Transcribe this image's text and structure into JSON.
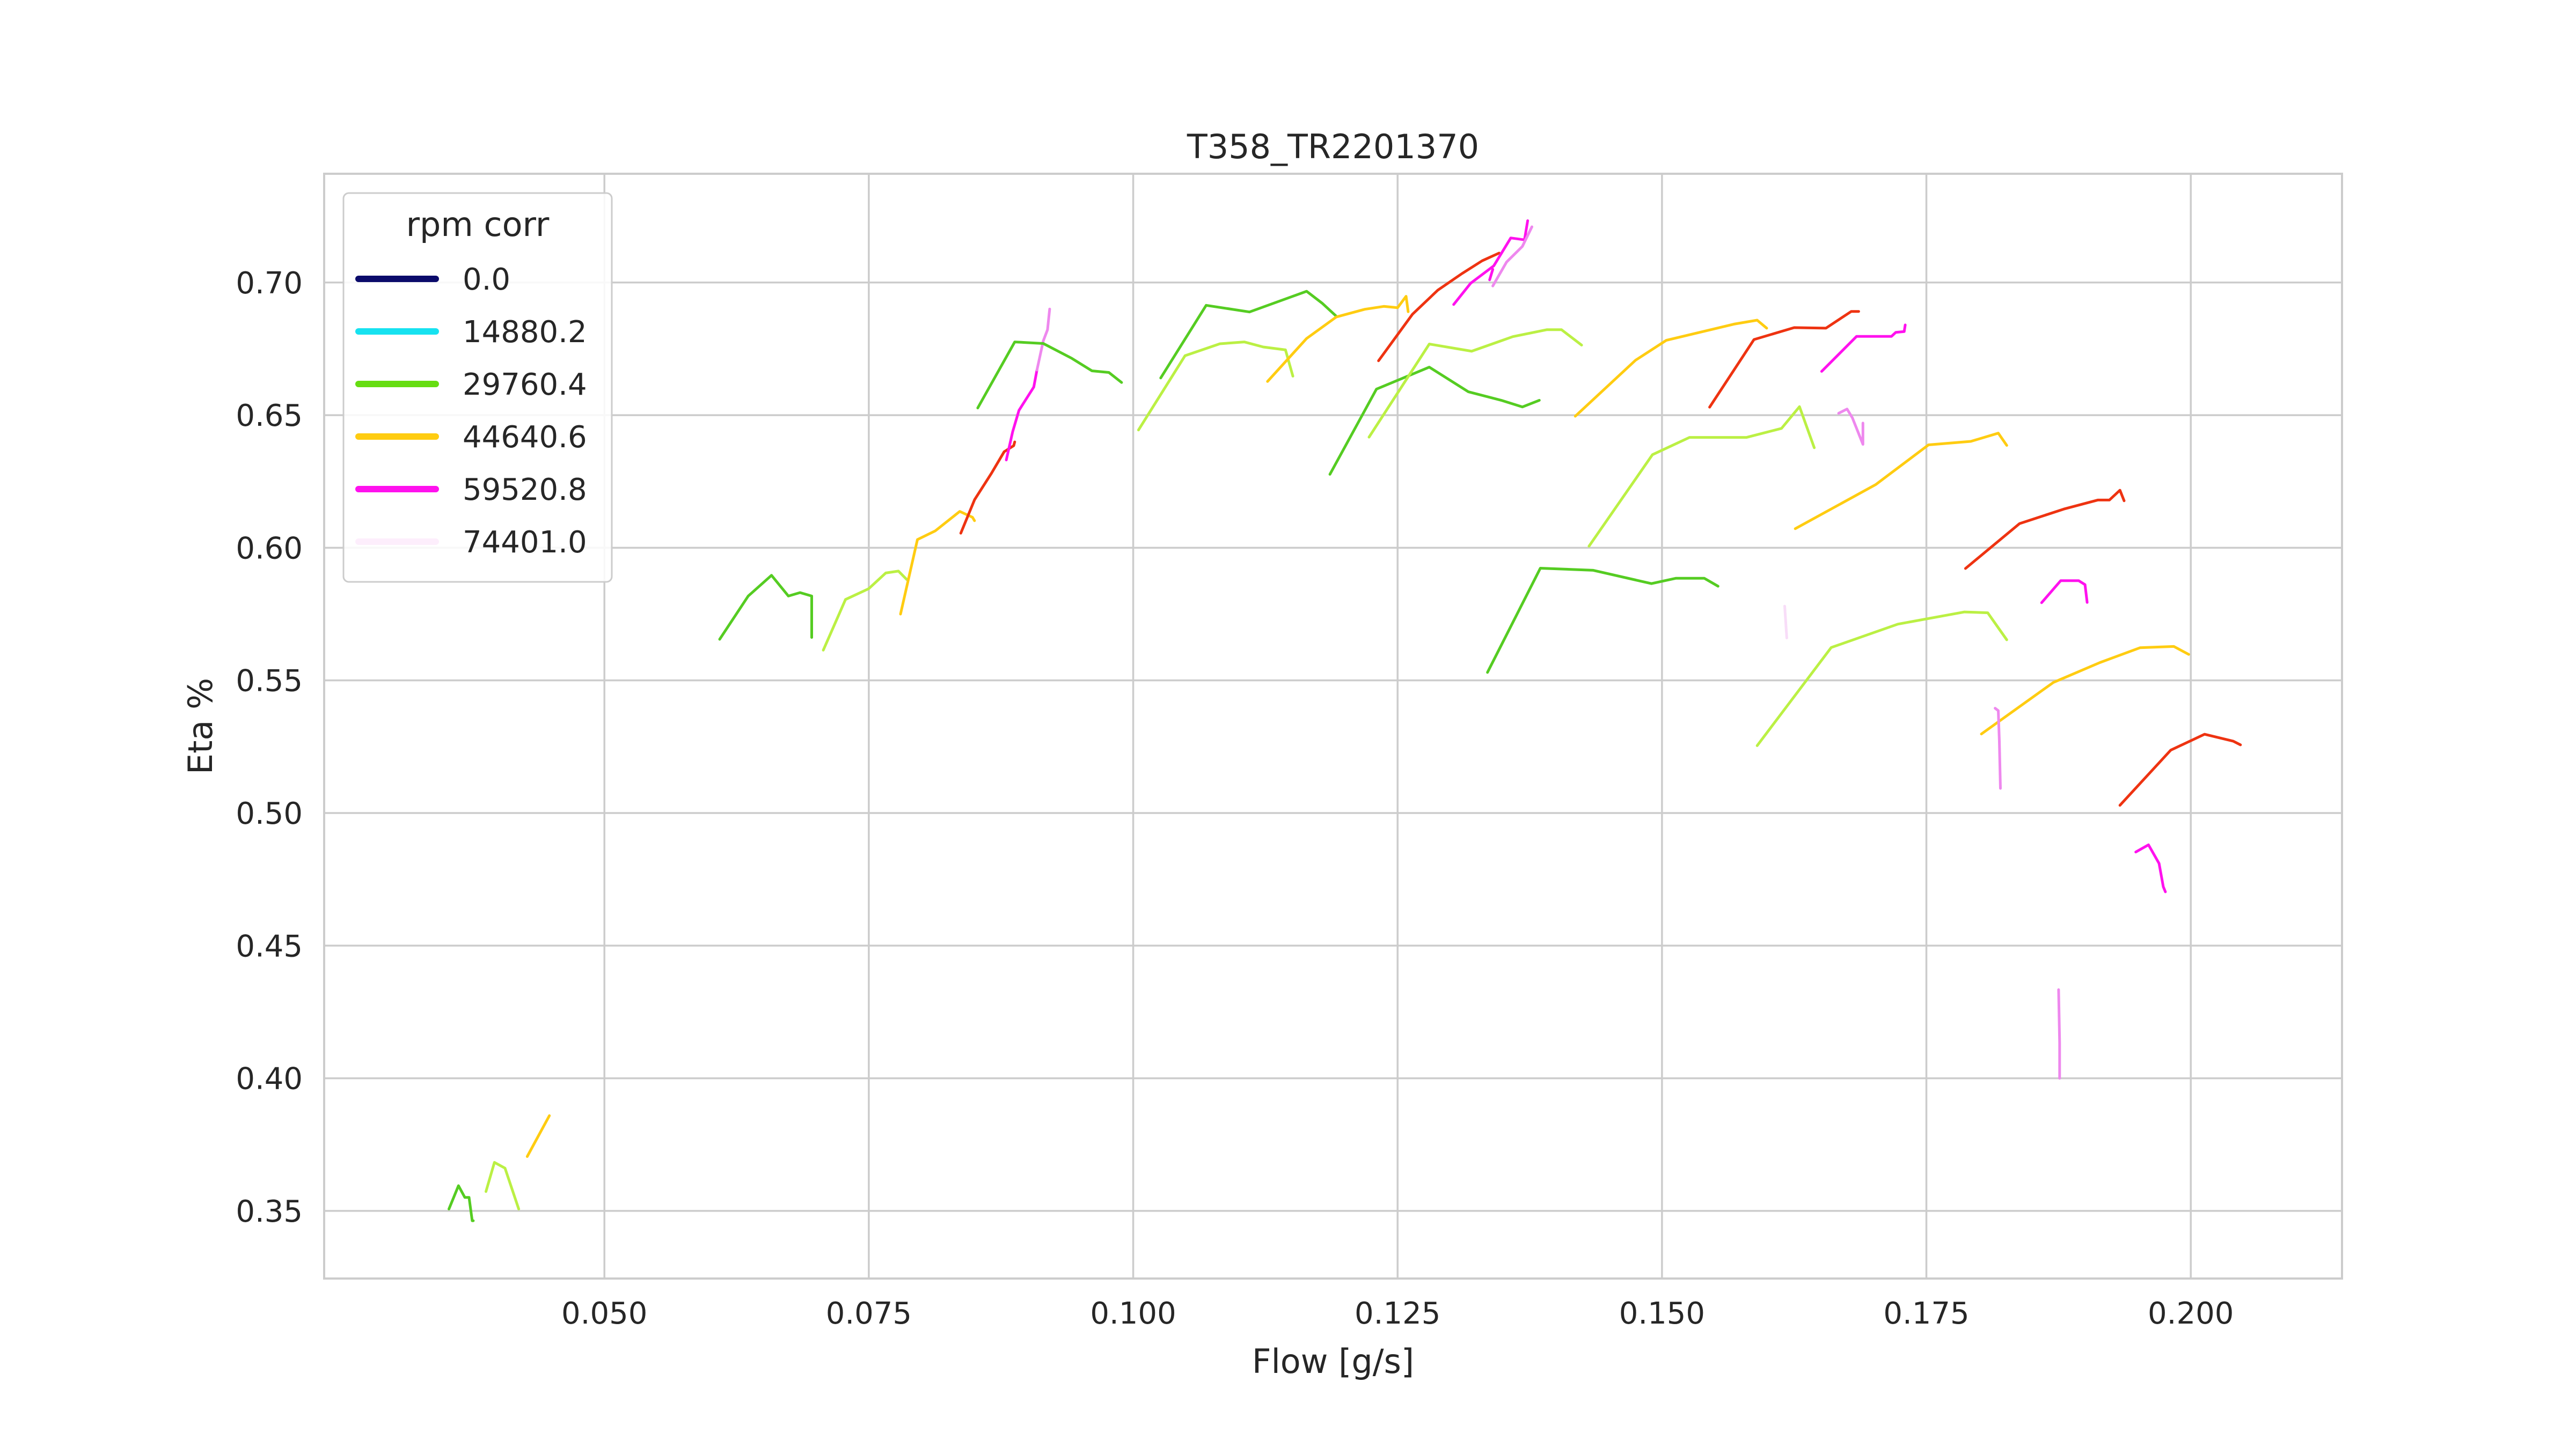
{
  "chart_data": {
    "type": "line",
    "title": "T358_TR2201370",
    "xlabel": "Flow [g/s]",
    "ylabel": "Eta %",
    "xlim": [
      0.0235,
      0.2143
    ],
    "ylim": [
      0.3245,
      0.741
    ],
    "xticks": [
      "0.050",
      "0.075",
      "0.100",
      "0.125",
      "0.150",
      "0.175",
      "0.200"
    ],
    "xtick_values": [
      0.05,
      0.075,
      0.1,
      0.125,
      0.15,
      0.175,
      0.2
    ],
    "yticks": [
      "0.35",
      "0.40",
      "0.45",
      "0.50",
      "0.55",
      "0.60",
      "0.65",
      "0.70"
    ],
    "ytick_values": [
      0.35,
      0.4,
      0.45,
      0.5,
      0.55,
      0.6,
      0.65,
      0.7
    ],
    "grid": true,
    "legend": {
      "title": "rpm corr",
      "position": "top-left",
      "entries": [
        {
          "label": "0.0",
          "color": "#0b0b6b"
        },
        {
          "label": "14880.2",
          "color": "#17e2f0"
        },
        {
          "label": "29760.4",
          "color": "#66dd11"
        },
        {
          "label": "44640.6",
          "color": "#ffcc11"
        },
        {
          "label": "59520.8",
          "color": "#ff11ee"
        },
        {
          "label": "74401.0",
          "color": "#fdeefc"
        }
      ]
    },
    "series": [
      {
        "color": "#55cc22",
        "points": [
          [
            0.0353,
            0.3507
          ],
          [
            0.0362,
            0.3595
          ],
          [
            0.0368,
            0.3551
          ],
          [
            0.0372,
            0.3551
          ],
          [
            0.0375,
            0.3463
          ],
          [
            0.0376,
            0.3463
          ]
        ]
      },
      {
        "color": "#bbf044",
        "points": [
          [
            0.0388,
            0.3573
          ],
          [
            0.0396,
            0.3683
          ],
          [
            0.0406,
            0.3661
          ],
          [
            0.0419,
            0.3507
          ]
        ]
      },
      {
        "color": "#ffcc11",
        "points": [
          [
            0.0427,
            0.3705
          ],
          [
            0.0448,
            0.3859
          ]
        ]
      },
      {
        "color": "#55cc22",
        "points": [
          [
            0.0609,
            0.5655
          ],
          [
            0.0636,
            0.5818
          ],
          [
            0.0658,
            0.5896
          ],
          [
            0.0674,
            0.5818
          ],
          [
            0.0685,
            0.5831
          ],
          [
            0.0696,
            0.5818
          ],
          [
            0.0696,
            0.5662
          ]
        ]
      },
      {
        "color": "#bbf044",
        "points": [
          [
            0.0707,
            0.5614
          ],
          [
            0.0728,
            0.5805
          ],
          [
            0.075,
            0.5846
          ],
          [
            0.0766,
            0.5905
          ],
          [
            0.0778,
            0.5912
          ],
          [
            0.0786,
            0.588
          ]
        ]
      },
      {
        "color": "#ffcc11",
        "points": [
          [
            0.078,
            0.575
          ],
          [
            0.0796,
            0.6031
          ],
          [
            0.0813,
            0.6064
          ],
          [
            0.0836,
            0.6137
          ],
          [
            0.0848,
            0.6115
          ],
          [
            0.085,
            0.6102
          ]
        ]
      },
      {
        "color": "#ee3311",
        "points": [
          [
            0.0837,
            0.6055
          ],
          [
            0.085,
            0.6181
          ],
          [
            0.0866,
            0.6281
          ],
          [
            0.0878,
            0.6362
          ],
          [
            0.0887,
            0.6385
          ],
          [
            0.0888,
            0.6399
          ]
        ]
      },
      {
        "color": "#ff11ee",
        "points": [
          [
            0.088,
            0.6331
          ],
          [
            0.0886,
            0.6437
          ],
          [
            0.0892,
            0.6518
          ],
          [
            0.0906,
            0.6606
          ],
          [
            0.0909,
            0.667
          ]
        ]
      },
      {
        "color": "#ee88ee",
        "points": [
          [
            0.0909,
            0.667
          ],
          [
            0.0915,
            0.678
          ],
          [
            0.0919,
            0.6822
          ],
          [
            0.0921,
            0.69
          ]
        ]
      },
      {
        "color": "#55cc22",
        "points": [
          [
            0.0853,
            0.6527
          ],
          [
            0.0888,
            0.6776
          ],
          [
            0.0915,
            0.677
          ],
          [
            0.0942,
            0.6714
          ],
          [
            0.0961,
            0.6667
          ],
          [
            0.0977,
            0.6661
          ],
          [
            0.0989,
            0.6623
          ]
        ]
      },
      {
        "color": "#55cc22",
        "points": [
          [
            0.1026,
            0.664
          ],
          [
            0.1069,
            0.6914
          ],
          [
            0.111,
            0.6889
          ],
          [
            0.1164,
            0.6967
          ],
          [
            0.1179,
            0.6921
          ],
          [
            0.1192,
            0.6873
          ]
        ]
      },
      {
        "color": "#bbf044",
        "points": [
          [
            0.1005,
            0.6444
          ],
          [
            0.1049,
            0.6724
          ],
          [
            0.1082,
            0.6769
          ],
          [
            0.1105,
            0.6776
          ],
          [
            0.1123,
            0.6757
          ],
          [
            0.1144,
            0.6746
          ],
          [
            0.1151,
            0.6647
          ]
        ]
      },
      {
        "color": "#ffcc11",
        "points": [
          [
            0.1127,
            0.6627
          ],
          [
            0.1164,
            0.6789
          ],
          [
            0.1192,
            0.687
          ],
          [
            0.1219,
            0.6899
          ],
          [
            0.1237,
            0.691
          ],
          [
            0.125,
            0.6905
          ],
          [
            0.1258,
            0.6948
          ],
          [
            0.126,
            0.689
          ]
        ]
      },
      {
        "color": "#ee3311",
        "points": [
          [
            0.1232,
            0.6705
          ],
          [
            0.1264,
            0.688
          ],
          [
            0.1288,
            0.6971
          ],
          [
            0.1311,
            0.7034
          ],
          [
            0.133,
            0.7082
          ],
          [
            0.1346,
            0.7111
          ]
        ]
      },
      {
        "color": "#ff11ee",
        "points": [
          [
            0.1303,
            0.6917
          ],
          [
            0.1319,
            0.6997
          ],
          [
            0.1341,
            0.7063
          ],
          [
            0.1357,
            0.7168
          ],
          [
            0.137,
            0.7161
          ],
          [
            0.1373,
            0.7233
          ]
        ]
      },
      {
        "color": "#ee88ee",
        "points": [
          [
            0.134,
            0.6987
          ],
          [
            0.1353,
            0.7077
          ],
          [
            0.1368,
            0.7136
          ],
          [
            0.1377,
            0.721
          ]
        ]
      },
      {
        "color": "#ff11ee",
        "points": [
          [
            0.1337,
            0.701
          ],
          [
            0.134,
            0.705
          ]
        ]
      },
      {
        "color": "#55cc22",
        "points": [
          [
            0.1186,
            0.6277
          ],
          [
            0.123,
            0.6598
          ],
          [
            0.128,
            0.6681
          ],
          [
            0.1317,
            0.6588
          ],
          [
            0.1348,
            0.6556
          ],
          [
            0.1368,
            0.6531
          ],
          [
            0.1384,
            0.6556
          ]
        ]
      },
      {
        "color": "#bbf044",
        "points": [
          [
            0.1223,
            0.6417
          ],
          [
            0.128,
            0.6768
          ],
          [
            0.132,
            0.6741
          ],
          [
            0.1359,
            0.6796
          ],
          [
            0.1391,
            0.6822
          ],
          [
            0.1405,
            0.6822
          ],
          [
            0.1424,
            0.6764
          ]
        ]
      },
      {
        "color": "#ffcc11",
        "points": [
          [
            0.1418,
            0.6496
          ],
          [
            0.1475,
            0.6707
          ],
          [
            0.1504,
            0.6782
          ],
          [
            0.1568,
            0.6843
          ],
          [
            0.159,
            0.6858
          ],
          [
            0.1599,
            0.6828
          ]
        ]
      },
      {
        "color": "#ee3311",
        "points": [
          [
            0.1545,
            0.653
          ],
          [
            0.1587,
            0.6785
          ],
          [
            0.1625,
            0.683
          ],
          [
            0.1655,
            0.6828
          ],
          [
            0.1679,
            0.6891
          ],
          [
            0.1686,
            0.6891
          ]
        ]
      },
      {
        "color": "#ff11ee",
        "points": [
          [
            0.1651,
            0.6665
          ],
          [
            0.1684,
            0.6797
          ],
          [
            0.1717,
            0.6797
          ],
          [
            0.1721,
            0.6812
          ],
          [
            0.1729,
            0.6815
          ],
          [
            0.173,
            0.684
          ]
        ]
      },
      {
        "color": "#bbf044",
        "points": [
          [
            0.1431,
            0.6006
          ],
          [
            0.1491,
            0.6351
          ],
          [
            0.1526,
            0.6416
          ],
          [
            0.158,
            0.6416
          ],
          [
            0.1613,
            0.645
          ],
          [
            0.163,
            0.6532
          ],
          [
            0.1644,
            0.6377
          ]
        ]
      },
      {
        "color": "#ee88ee",
        "points": [
          [
            0.1667,
            0.6507
          ],
          [
            0.1675,
            0.6523
          ],
          [
            0.168,
            0.649
          ],
          [
            0.169,
            0.639
          ],
          [
            0.169,
            0.647
          ]
        ]
      },
      {
        "color": "#55cc22",
        "points": [
          [
            0.1335,
            0.553
          ],
          [
            0.1385,
            0.5923
          ],
          [
            0.1435,
            0.5915
          ],
          [
            0.149,
            0.5865
          ],
          [
            0.1513,
            0.5885
          ],
          [
            0.154,
            0.5885
          ],
          [
            0.1553,
            0.5855
          ]
        ]
      },
      {
        "color": "#ffcc11",
        "points": [
          [
            0.1626,
            0.6072
          ],
          [
            0.1702,
            0.6238
          ],
          [
            0.1752,
            0.6388
          ],
          [
            0.1792,
            0.6401
          ],
          [
            0.1818,
            0.6432
          ],
          [
            0.1826,
            0.6386
          ]
        ]
      },
      {
        "color": "#ee3311",
        "points": [
          [
            0.1787,
            0.5922
          ],
          [
            0.1838,
            0.6091
          ],
          [
            0.188,
            0.6146
          ],
          [
            0.1912,
            0.618
          ],
          [
            0.1923,
            0.618
          ],
          [
            0.1933,
            0.6217
          ],
          [
            0.1937,
            0.6177
          ]
        ]
      },
      {
        "color": "#ff11ee",
        "points": [
          [
            0.1859,
            0.5793
          ],
          [
            0.1877,
            0.5876
          ],
          [
            0.1894,
            0.5876
          ],
          [
            0.19,
            0.5861
          ],
          [
            0.1902,
            0.5794
          ]
        ]
      },
      {
        "color": "#f8ddf8",
        "points": [
          [
            0.1616,
            0.578
          ],
          [
            0.1618,
            0.566
          ]
        ]
      },
      {
        "color": "#bbf044",
        "points": [
          [
            0.159,
            0.5254
          ],
          [
            0.166,
            0.5624
          ],
          [
            0.1723,
            0.5712
          ],
          [
            0.1786,
            0.5758
          ],
          [
            0.1808,
            0.5755
          ],
          [
            0.1826,
            0.5653
          ]
        ]
      },
      {
        "color": "#ffcc11",
        "points": [
          [
            0.1802,
            0.5298
          ],
          [
            0.187,
            0.5492
          ],
          [
            0.1914,
            0.5567
          ],
          [
            0.1952,
            0.5623
          ],
          [
            0.1984,
            0.5628
          ],
          [
            0.1998,
            0.5598
          ]
        ]
      },
      {
        "color": "#ee3311",
        "points": [
          [
            0.1933,
            0.5029
          ],
          [
            0.1981,
            0.5237
          ],
          [
            0.2013,
            0.5297
          ],
          [
            0.204,
            0.5271
          ],
          [
            0.2047,
            0.5257
          ]
        ]
      },
      {
        "color": "#ee88ee",
        "points": [
          [
            0.1815,
            0.5395
          ],
          [
            0.1818,
            0.5386
          ],
          [
            0.1819,
            0.527
          ],
          [
            0.182,
            0.5093
          ]
        ]
      },
      {
        "color": "#ff11ee",
        "points": [
          [
            0.1948,
            0.4853
          ],
          [
            0.196,
            0.488
          ],
          [
            0.197,
            0.481
          ],
          [
            0.1974,
            0.4722
          ],
          [
            0.1976,
            0.4703
          ]
        ]
      },
      {
        "color": "#ee88ee",
        "points": [
          [
            0.1875,
            0.4334
          ],
          [
            0.1876,
            0.4135
          ],
          [
            0.1876,
            0.4
          ]
        ]
      }
    ]
  }
}
